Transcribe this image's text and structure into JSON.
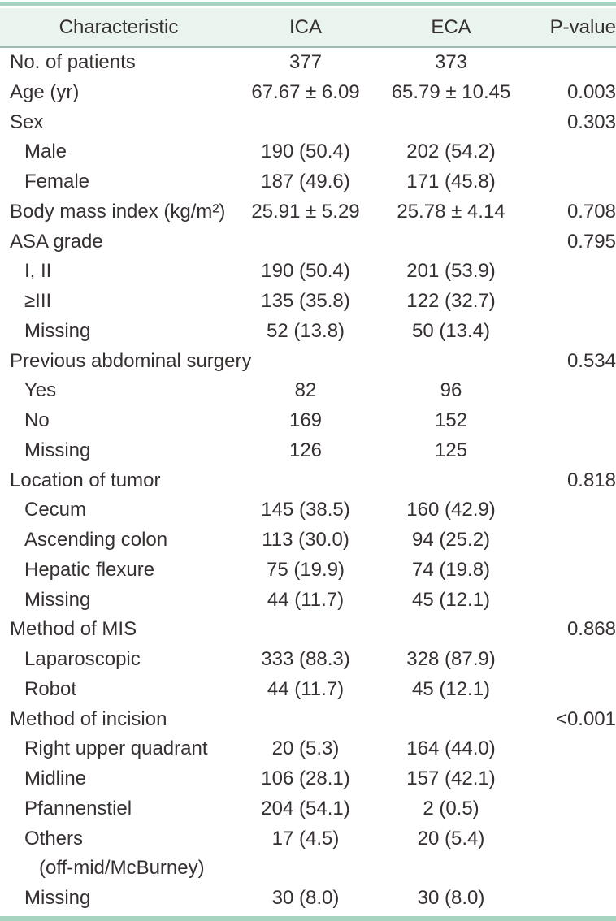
{
  "table": {
    "columns": [
      "Characteristic",
      "ICA",
      "ECA",
      "P-value"
    ],
    "accent_colors": {
      "rule_teal": "#a5d3bf",
      "header_background": "#eaf4ef",
      "header_divider": "#9dbab1",
      "text": "#363130"
    },
    "rows": [
      {
        "label": "No. of patients",
        "indent": 0,
        "ica": "377",
        "eca": "373",
        "p": ""
      },
      {
        "label": "Age (yr)",
        "indent": 0,
        "ica": "67.67 ± 6.09",
        "eca": "65.79 ± 10.45",
        "p": "0.003"
      },
      {
        "label": "Sex",
        "indent": 0,
        "ica": "",
        "eca": "",
        "p": "0.303"
      },
      {
        "label": "Male",
        "indent": 1,
        "ica": "190 (50.4)",
        "eca": "202 (54.2)",
        "p": ""
      },
      {
        "label": "Female",
        "indent": 1,
        "ica": "187 (49.6)",
        "eca": "171 (45.8)",
        "p": ""
      },
      {
        "label": "Body mass index (kg/m²)",
        "indent": 0,
        "ica": "25.91 ± 5.29",
        "eca": "25.78 ± 4.14",
        "p": "0.708"
      },
      {
        "label": "ASA grade",
        "indent": 0,
        "ica": "",
        "eca": "",
        "p": "0.795"
      },
      {
        "label": "I, II",
        "indent": 1,
        "ica": "190 (50.4)",
        "eca": "201 (53.9)",
        "p": ""
      },
      {
        "label": "≥III",
        "indent": 1,
        "ica": "135 (35.8)",
        "eca": "122 (32.7)",
        "p": ""
      },
      {
        "label": "Missing",
        "indent": 1,
        "ica": "52 (13.8)",
        "eca": "50 (13.4)",
        "p": ""
      },
      {
        "label": "Previous abdominal surgery",
        "indent": 0,
        "ica": "",
        "eca": "",
        "p": "0.534"
      },
      {
        "label": "Yes",
        "indent": 1,
        "ica": "82",
        "eca": "96",
        "p": ""
      },
      {
        "label": "No",
        "indent": 1,
        "ica": "169",
        "eca": "152",
        "p": ""
      },
      {
        "label": "Missing",
        "indent": 1,
        "ica": "126",
        "eca": "125",
        "p": ""
      },
      {
        "label": "Location of tumor",
        "indent": 0,
        "ica": "",
        "eca": "",
        "p": "0.818"
      },
      {
        "label": "Cecum",
        "indent": 1,
        "ica": "145 (38.5)",
        "eca": "160 (42.9)",
        "p": ""
      },
      {
        "label": "Ascending colon",
        "indent": 1,
        "ica": "113 (30.0)",
        "eca": "94 (25.2)",
        "p": ""
      },
      {
        "label": "Hepatic flexure",
        "indent": 1,
        "ica": "75 (19.9)",
        "eca": "74 (19.8)",
        "p": ""
      },
      {
        "label": "Missing",
        "indent": 1,
        "ica": "44 (11.7)",
        "eca": "45 (12.1)",
        "p": ""
      },
      {
        "label": "Method of MIS",
        "indent": 0,
        "ica": "",
        "eca": "",
        "p": "0.868"
      },
      {
        "label": "Laparoscopic",
        "indent": 1,
        "ica": "333 (88.3)",
        "eca": "328 (87.9)",
        "p": ""
      },
      {
        "label": "Robot",
        "indent": 1,
        "ica": "44 (11.7)",
        "eca": "45 (12.1)",
        "p": ""
      },
      {
        "label": "Method of incision",
        "indent": 0,
        "ica": "",
        "eca": "",
        "p": "<0.001"
      },
      {
        "label": "Right upper quadrant",
        "indent": 1,
        "ica": "20 (5.3)",
        "eca": "164 (44.0)",
        "p": ""
      },
      {
        "label": "Midline",
        "indent": 1,
        "ica": "106 (28.1)",
        "eca": "157 (42.1)",
        "p": ""
      },
      {
        "label": "Pfannenstiel",
        "indent": 1,
        "ica": "204 (54.1)",
        "eca": "2 (0.5)",
        "p": ""
      },
      {
        "label": "Others",
        "label_line2": "(off-mid/McBurney)",
        "indent": 1,
        "ica": "17 (4.5)",
        "eca": "20 (5.4)",
        "p": ""
      },
      {
        "label": "Missing",
        "indent": 1,
        "ica": "30 (8.0)",
        "eca": "30 (8.0)",
        "p": ""
      }
    ]
  }
}
